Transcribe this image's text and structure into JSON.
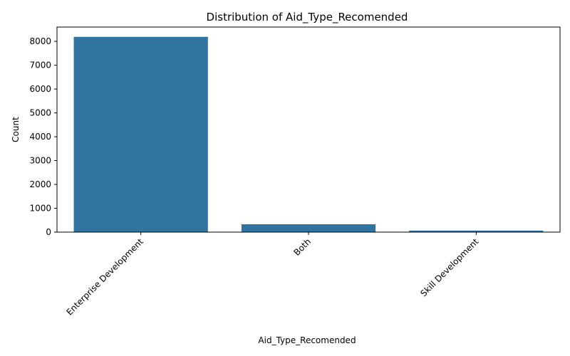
{
  "chart_data": {
    "type": "bar",
    "title": "Distribution of Aid_Type_Recomended",
    "xlabel": "Aid_Type_Recomended",
    "ylabel": "Count",
    "categories": [
      "Enterprise Development",
      "Both",
      "Skill Development"
    ],
    "values": [
      8190,
      330,
      65
    ],
    "ylim": [
      0,
      8600
    ],
    "yticks": [
      0,
      1000,
      2000,
      3000,
      4000,
      5000,
      6000,
      7000,
      8000
    ],
    "bar_color": "#3274a1",
    "grid": false,
    "legend": "none"
  }
}
